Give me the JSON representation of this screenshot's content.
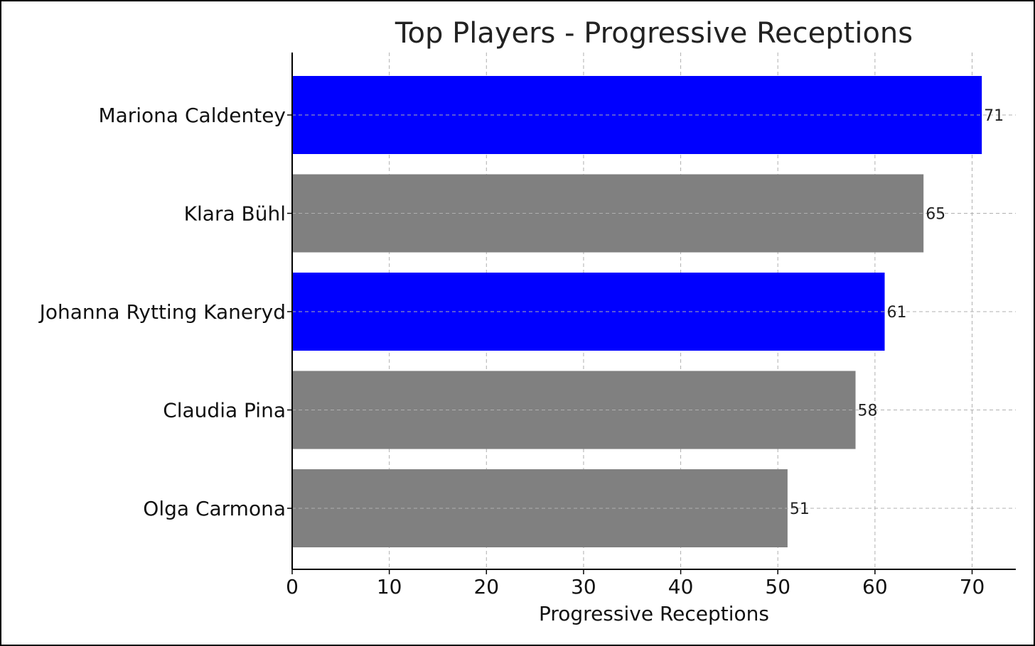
{
  "chart_data": {
    "type": "bar",
    "orientation": "horizontal",
    "title": "Top Players - Progressive Receptions",
    "xlabel": "Progressive Receptions",
    "ylabel": "",
    "categories": [
      "Mariona Caldentey",
      "Klara Bühl",
      "Johanna Rytting Kaneryd",
      "Claudia Pina",
      "Olga Carmona"
    ],
    "values": [
      71,
      65,
      61,
      58,
      51
    ],
    "value_labels": [
      "71",
      "65",
      "61",
      "58",
      "51"
    ],
    "bar_colors": [
      "#0000ff",
      "#808080",
      "#0000ff",
      "#808080",
      "#808080"
    ],
    "xlim": [
      0,
      74.5
    ],
    "xticks": [
      0,
      10,
      20,
      30,
      40,
      50,
      60,
      70
    ],
    "xtick_labels": [
      "0",
      "10",
      "20",
      "30",
      "40",
      "50",
      "60",
      "70"
    ],
    "grid": true,
    "grid_style": "dashed",
    "legend": false
  }
}
